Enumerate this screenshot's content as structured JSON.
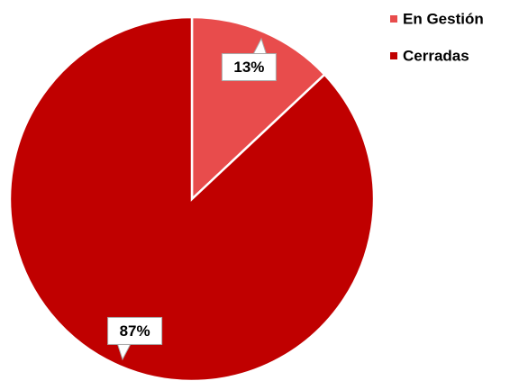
{
  "chart_data": {
    "type": "pie",
    "categories": [
      "En Gestión",
      "Cerradas"
    ],
    "values": [
      13,
      87
    ],
    "value_labels": [
      "13%",
      "87%"
    ],
    "colors": [
      "#e84c4c",
      "#c00000"
    ],
    "legend": "upper right"
  }
}
